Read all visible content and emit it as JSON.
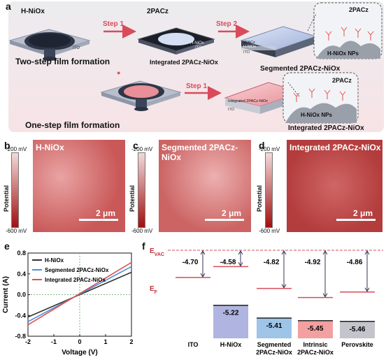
{
  "panels": {
    "a": "a",
    "b": "b",
    "c": "c",
    "d": "d",
    "e": "e",
    "f": "f"
  },
  "panel_a": {
    "h_niox": "H-NiOx",
    "step1": "Step 1",
    "step2": "Step 2",
    "pacz_2": "2PACz",
    "ito": "ITO",
    "h_niox_layer": "H-NiOx",
    "pacz_layer": "2PACz",
    "two_step": "Two-step film formation",
    "one_step": "One-step film formation",
    "integrated_mid": "Integrated 2PACz-NiOx",
    "segmented": "Segmented 2PACz-NiOx",
    "integrated_bottom": "Integrated 2PACz-NiOx",
    "integrated_layer": "Integrated 2PACz-NiOx",
    "nps": "H-NiOx NPs",
    "nps2": "H-NiOx NPs",
    "pacz_zoom1": "2PACz",
    "pacz_zoom2": "2PACz"
  },
  "kpfm": {
    "b_title": "H-NiOx",
    "c_title": "Segmented 2PACz-NiOx",
    "d_title": "Integrated 2PACz-NiOx",
    "cbar_top": "-200 mV",
    "cbar_bottom": "-600 mV",
    "cbar_label": "Potential",
    "scale": "2 μm"
  },
  "chart_data": [
    {
      "type": "line",
      "xlabel": "Voltage (V)",
      "ylabel": "Current (A)",
      "xlim": [
        -2,
        2
      ],
      "ylim": [
        -0.8,
        0.8
      ],
      "xticks": [
        "-2",
        "-1",
        "0",
        "1",
        "2"
      ],
      "yticks": [
        "-0.8",
        "-0.4",
        "0.0",
        "0.4",
        "0.8"
      ],
      "legend_position": "top-left",
      "series": [
        {
          "name": "H-NiOx",
          "color": "#333333",
          "x": [
            -2,
            2
          ],
          "y": [
            -0.43,
            0.43
          ]
        },
        {
          "name": "Segmented 2PACz-NiOx",
          "color": "#4a90d9",
          "x": [
            -2,
            2
          ],
          "y": [
            -0.52,
            0.54
          ]
        },
        {
          "name": "Integrated 2PACz-NiOx",
          "color": "#e05050",
          "x": [
            -2,
            2
          ],
          "y": [
            -0.58,
            0.62
          ]
        }
      ]
    },
    {
      "type": "bar",
      "evac_label": "E",
      "evac_sub": "VAC",
      "ef_label": "E",
      "ef_sub": "F",
      "categories": [
        "ITO",
        "H-NiOx",
        "Segmented 2PACz-NiOx",
        "Intrinsic 2PACz-NiOx",
        "Perovskite"
      ],
      "work_function": [
        "-4.70",
        "-4.58",
        "-4.82",
        "-4.92",
        "-4.86"
      ],
      "vbm": [
        "-5.22",
        "-5.41",
        "-5.45",
        "-5.46"
      ],
      "colors": [
        "#b0b4e0",
        "#9ec4e8",
        "#f2a0a0",
        "#c4c4cc"
      ]
    }
  ]
}
